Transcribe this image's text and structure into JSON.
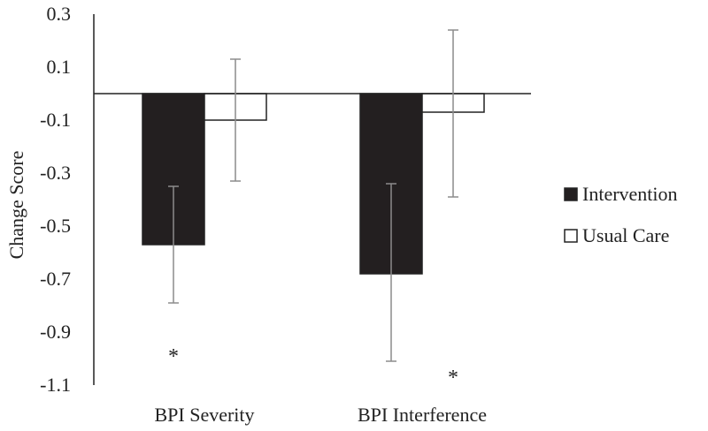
{
  "chart_data": {
    "type": "bar",
    "title": "",
    "xlabel": "",
    "ylabel": "Change Score",
    "ylim": [
      -1.1,
      0.3
    ],
    "yticks": [
      0.3,
      0.1,
      -0.1,
      -0.3,
      -0.5,
      -0.7,
      -0.9,
      -1.1
    ],
    "ytick_labels": [
      "0.3",
      "0.1",
      "-0.1",
      "-0.3",
      "-0.5",
      "-0.7",
      "-0.9",
      "-1.1"
    ],
    "categories": [
      "BPI Severity",
      "BPI Interference"
    ],
    "series": [
      {
        "name": "Intervention",
        "color": "#231f20",
        "values": [
          -0.57,
          -0.68
        ],
        "error_low": [
          -0.79,
          -1.01
        ],
        "error_high": [
          -0.35,
          -0.34
        ]
      },
      {
        "name": "Usual Care",
        "color": "#ffffff",
        "values": [
          -0.1,
          -0.07
        ],
        "error_low": [
          -0.33,
          -0.39
        ],
        "error_high": [
          0.13,
          0.24
        ]
      }
    ],
    "annotations": [
      {
        "text": "*",
        "category": 0,
        "series": 0,
        "y": -0.97
      },
      {
        "text": "*",
        "category": 1,
        "series": 1,
        "y": -1.05
      }
    ],
    "legend_position": "right"
  }
}
